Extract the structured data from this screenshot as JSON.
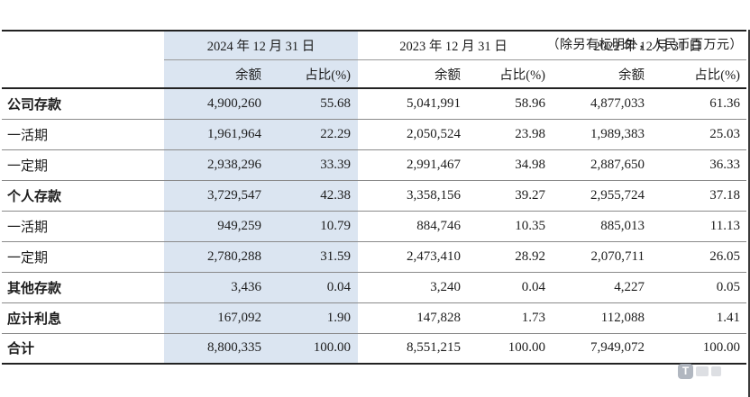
{
  "note": "（除另有标明外，人民币百万元）",
  "watermark": {
    "logo_letter": "T"
  },
  "colors": {
    "highlight_column": "#dbe5f1",
    "rule_dark": "#222222",
    "rule_light": "#9a9a9a",
    "row_separator": "#8a8a8a"
  },
  "table": {
    "col_groups": [
      {
        "date": "2024 年 12 月 31 日",
        "highlight": true
      },
      {
        "date": "2023 年 12 月 31 日",
        "highlight": false
      },
      {
        "date": "2022 年 12 月 31 日",
        "highlight": false
      }
    ],
    "sub_headers": {
      "balance": "余额",
      "ratio": "占比(%)"
    },
    "rows": [
      {
        "label": "公司存款",
        "bold": true,
        "cells": [
          "4,900,260",
          "55.68",
          "5,041,991",
          "58.96",
          "4,877,033",
          "61.36"
        ]
      },
      {
        "label": "一活期",
        "bold": false,
        "cells": [
          "1,961,964",
          "22.29",
          "2,050,524",
          "23.98",
          "1,989,383",
          "25.03"
        ]
      },
      {
        "label": "一定期",
        "bold": false,
        "cells": [
          "2,938,296",
          "33.39",
          "2,991,467",
          "34.98",
          "2,887,650",
          "36.33"
        ]
      },
      {
        "label": "个人存款",
        "bold": true,
        "cells": [
          "3,729,547",
          "42.38",
          "3,358,156",
          "39.27",
          "2,955,724",
          "37.18"
        ]
      },
      {
        "label": "一活期",
        "bold": false,
        "cells": [
          "949,259",
          "10.79",
          "884,746",
          "10.35",
          "885,013",
          "11.13"
        ]
      },
      {
        "label": "一定期",
        "bold": false,
        "cells": [
          "2,780,288",
          "31.59",
          "2,473,410",
          "28.92",
          "2,070,711",
          "26.05"
        ]
      },
      {
        "label": "其他存款",
        "bold": true,
        "cells": [
          "3,436",
          "0.04",
          "3,240",
          "0.04",
          "4,227",
          "0.05"
        ]
      },
      {
        "label": "应计利息",
        "bold": true,
        "cells": [
          "167,092",
          "1.90",
          "147,828",
          "1.73",
          "112,088",
          "1.41"
        ]
      },
      {
        "label": "合计",
        "bold": true,
        "cells": [
          "8,800,335",
          "100.00",
          "8,551,215",
          "100.00",
          "7,949,072",
          "100.00"
        ]
      }
    ]
  }
}
